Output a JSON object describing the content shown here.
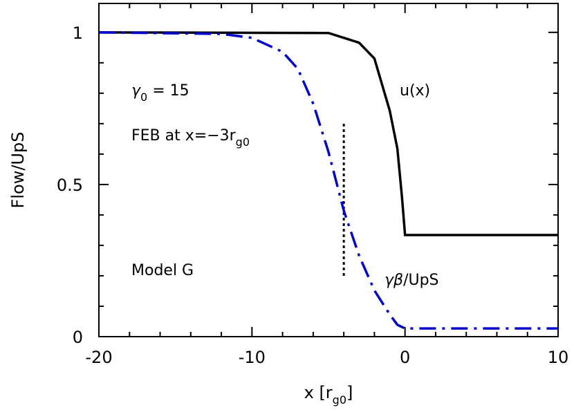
{
  "chart_data": {
    "type": "line",
    "x_label": [
      "x [r",
      "g0",
      "]"
    ],
    "y_label": "Flow/UpS",
    "xlim": [
      -20,
      10
    ],
    "ylim": [
      0,
      1.095
    ],
    "xticks": [
      -20,
      -10,
      0,
      10
    ],
    "xminor": [
      -18,
      -16,
      -14,
      -12,
      -8,
      -6,
      -4,
      -2,
      2,
      4,
      6,
      8
    ],
    "yticks": [
      0,
      0.5,
      1
    ],
    "yminor": [
      0.1,
      0.2,
      0.3,
      0.4,
      0.6,
      0.7,
      0.8,
      0.9
    ],
    "series": [
      {
        "name": "u(x)",
        "color": "#000000",
        "style": "solid",
        "x": [
          -20,
          -5,
          -3,
          -2,
          -1,
          -0.5,
          -0.2,
          0,
          10
        ],
        "values": [
          1,
          0.998,
          0.966,
          0.914,
          0.743,
          0.618,
          0.459,
          0.334,
          0.334
        ]
      },
      {
        "name": [
          "γβ",
          "/UpS"
        ],
        "color": "#0000cc",
        "style": "dashdot",
        "x": [
          -20,
          -12,
          -10,
          -8,
          -7,
          -6,
          -5,
          -4,
          -3,
          -2,
          -1,
          -0.5,
          0,
          10
        ],
        "values": [
          1,
          0.995,
          0.982,
          0.936,
          0.88,
          0.766,
          0.607,
          0.414,
          0.266,
          0.152,
          0.073,
          0.039,
          0.027,
          0.027
        ]
      }
    ],
    "marker_line": {
      "x": -4,
      "y": [
        0.2,
        0.7
      ]
    },
    "annotations": [
      [
        "γ",
        "0",
        " = 15"
      ],
      [
        "FEB at x=−3r",
        "g0"
      ],
      [
        "Model G"
      ]
    ]
  }
}
